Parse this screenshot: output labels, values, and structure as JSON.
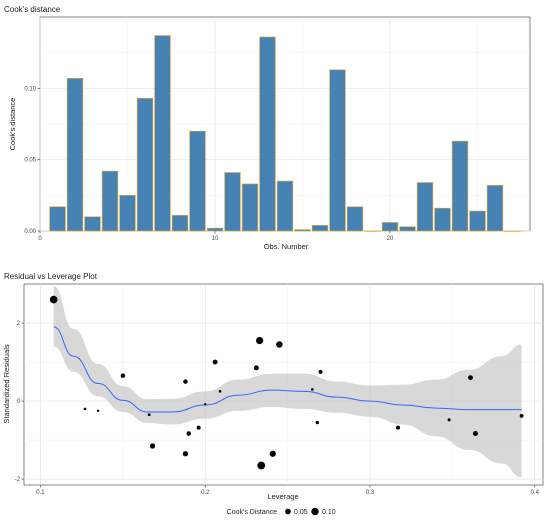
{
  "chart_data": [
    {
      "type": "bar",
      "title": "Cook's distance",
      "xlabel": "Obs. Number",
      "ylabel": "Cook's distance",
      "xlim": [
        0,
        28
      ],
      "ylim": [
        0,
        0.15
      ],
      "xticks": [
        0,
        10,
        20
      ],
      "yticks": [
        0.0,
        0.05,
        0.1
      ],
      "ytick_labels": [
        "0.00",
        "0.05",
        "0.10"
      ],
      "grid": true,
      "bar_color": "#4682b4",
      "bar_edge_color": "#e5a72a",
      "categories": [
        1,
        2,
        3,
        4,
        5,
        6,
        7,
        8,
        9,
        10,
        11,
        12,
        13,
        14,
        15,
        16,
        17,
        18,
        19,
        20,
        21,
        22,
        23,
        24,
        25,
        26,
        27
      ],
      "values": [
        0.017,
        0.107,
        0.01,
        0.042,
        0.025,
        0.093,
        0.137,
        0.011,
        0.07,
        0.002,
        0.041,
        0.033,
        0.136,
        0.035,
        0.001,
        0.004,
        0.113,
        0.017,
        0.0,
        0.006,
        0.003,
        0.034,
        0.016,
        0.063,
        0.014,
        0.032,
        0.0
      ]
    },
    {
      "type": "scatter",
      "title": "Residual vs Leverage Plot",
      "xlabel": "Leverage",
      "ylabel": "Standardized Residuals",
      "xlim": [
        0.09,
        0.405
      ],
      "ylim": [
        -2.15,
        3.0
      ],
      "xticks": [
        0.1,
        0.2,
        0.3,
        0.4
      ],
      "yticks": [
        -2,
        0,
        2
      ],
      "grid": true,
      "smooth_color": "#3366ff",
      "band_color": "#bebebe",
      "points": [
        {
          "x": 0.108,
          "y": 2.6,
          "cooks": 0.107
        },
        {
          "x": 0.127,
          "y": -0.2,
          "cooks": 0.003
        },
        {
          "x": 0.135,
          "y": -0.25,
          "cooks": 0.002
        },
        {
          "x": 0.15,
          "y": 0.65,
          "cooks": 0.025
        },
        {
          "x": 0.166,
          "y": -0.35,
          "cooks": 0.004
        },
        {
          "x": 0.168,
          "y": -1.15,
          "cooks": 0.042
        },
        {
          "x": 0.188,
          "y": 0.5,
          "cooks": 0.025
        },
        {
          "x": 0.188,
          "y": -1.35,
          "cooks": 0.041
        },
        {
          "x": 0.19,
          "y": -0.83,
          "cooks": 0.025
        },
        {
          "x": 0.196,
          "y": -0.68,
          "cooks": 0.017
        },
        {
          "x": 0.2,
          "y": -0.08,
          "cooks": 0.002
        },
        {
          "x": 0.206,
          "y": 1.0,
          "cooks": 0.033
        },
        {
          "x": 0.209,
          "y": 0.25,
          "cooks": 0.003
        },
        {
          "x": 0.231,
          "y": 0.85,
          "cooks": 0.034
        },
        {
          "x": 0.233,
          "y": 1.55,
          "cooks": 0.093
        },
        {
          "x": 0.234,
          "y": -1.65,
          "cooks": 0.113
        },
        {
          "x": 0.241,
          "y": -1.35,
          "cooks": 0.063
        },
        {
          "x": 0.245,
          "y": 1.45,
          "cooks": 0.07
        },
        {
          "x": 0.265,
          "y": 0.3,
          "cooks": 0.003
        },
        {
          "x": 0.268,
          "y": -0.55,
          "cooks": 0.01
        },
        {
          "x": 0.27,
          "y": 0.75,
          "cooks": 0.017
        },
        {
          "x": 0.317,
          "y": -0.68,
          "cooks": 0.017
        },
        {
          "x": 0.348,
          "y": -0.48,
          "cooks": 0.006
        },
        {
          "x": 0.361,
          "y": 0.6,
          "cooks": 0.032
        },
        {
          "x": 0.364,
          "y": -0.83,
          "cooks": 0.035
        },
        {
          "x": 0.392,
          "y": -0.38,
          "cooks": 0.014
        }
      ],
      "smooth": [
        {
          "x": 0.108,
          "y": 1.9,
          "lo": 1.4,
          "hi": 2.95
        },
        {
          "x": 0.12,
          "y": 1.15,
          "lo": 0.75,
          "hi": 1.85
        },
        {
          "x": 0.135,
          "y": 0.45,
          "lo": 0.12,
          "hi": 0.95
        },
        {
          "x": 0.15,
          "y": 0.02,
          "lo": -0.28,
          "hi": 0.38
        },
        {
          "x": 0.165,
          "y": -0.28,
          "lo": -0.56,
          "hi": 0.05
        },
        {
          "x": 0.18,
          "y": -0.28,
          "lo": -0.6,
          "hi": 0.06
        },
        {
          "x": 0.2,
          "y": -0.1,
          "lo": -0.45,
          "hi": 0.25
        },
        {
          "x": 0.22,
          "y": 0.15,
          "lo": -0.25,
          "hi": 0.55
        },
        {
          "x": 0.24,
          "y": 0.28,
          "lo": -0.15,
          "hi": 0.7
        },
        {
          "x": 0.26,
          "y": 0.25,
          "lo": -0.2,
          "hi": 0.7
        },
        {
          "x": 0.28,
          "y": 0.1,
          "lo": -0.3,
          "hi": 0.5
        },
        {
          "x": 0.3,
          "y": 0.0,
          "lo": -0.4,
          "hi": 0.4
        },
        {
          "x": 0.32,
          "y": -0.1,
          "lo": -0.6,
          "hi": 0.42
        },
        {
          "x": 0.34,
          "y": -0.18,
          "lo": -0.9,
          "hi": 0.55
        },
        {
          "x": 0.36,
          "y": -0.22,
          "lo": -1.25,
          "hi": 0.8
        },
        {
          "x": 0.38,
          "y": -0.22,
          "lo": -1.6,
          "hi": 1.15
        },
        {
          "x": 0.392,
          "y": -0.22,
          "lo": -1.95,
          "hi": 1.45
        }
      ],
      "legend": {
        "title": "Cook's Distance",
        "placement": "bottom",
        "entries": [
          {
            "label": "0.05",
            "value": 0.05
          },
          {
            "label": "0.10",
            "value": 0.1
          }
        ]
      }
    }
  ]
}
